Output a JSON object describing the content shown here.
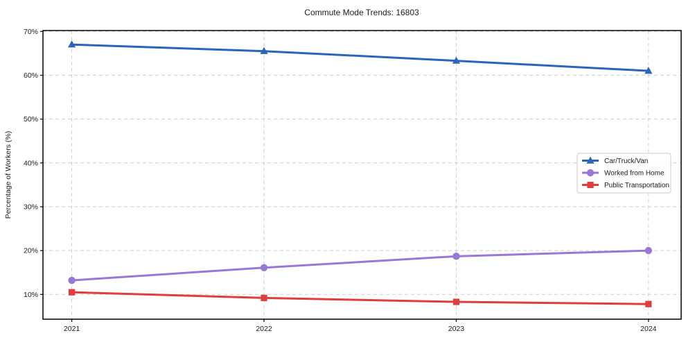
{
  "page": {
    "title": "Commute Mode Trends: 16803"
  },
  "chart_data": {
    "type": "line",
    "title": "Commute Mode Trends: 16803",
    "xlabel": "",
    "ylabel": "Percentage of Workers (%)",
    "categories": [
      2021,
      2022,
      2023,
      2024
    ],
    "x_tick_labels": [
      "2021",
      "2022",
      "2023",
      "2024"
    ],
    "series": [
      {
        "name": "Car/Truck/Van",
        "marker": "triangle",
        "color": "#2b65b9",
        "values": [
          67.0,
          65.5,
          63.3,
          61.0
        ]
      },
      {
        "name": "Worked from Home",
        "marker": "circle",
        "color": "#9878d4",
        "values": [
          13.2,
          16.1,
          18.7,
          20.0
        ]
      },
      {
        "name": "Public Transportation",
        "marker": "square",
        "color": "#e03d3d",
        "values": [
          10.5,
          9.2,
          8.3,
          7.8
        ]
      }
    ],
    "y_ticks": [
      10,
      20,
      30,
      40,
      50,
      60,
      70
    ],
    "y_tick_suffix": "%",
    "ylim": [
      4.35,
      70.2
    ],
    "xlim": [
      2020.85,
      2024.17
    ],
    "grid": true,
    "grid_style": "dashed",
    "legend_position": "center-right"
  },
  "style": {
    "grid_color": "#cccccc",
    "frame_color": "#000000",
    "text_color": "#1a1a1a",
    "background": "#ffffff",
    "legend_border": "#c8c8c8",
    "legend_background": "#ffffff",
    "series_line_width": 3
  }
}
